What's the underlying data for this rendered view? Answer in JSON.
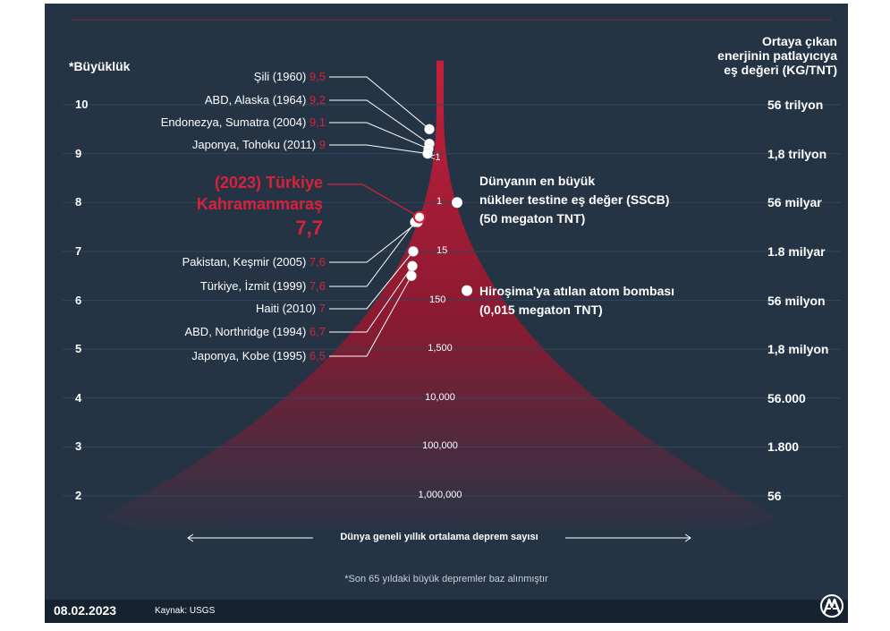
{
  "header": {
    "left_title": "*Büyüklük",
    "right_title_lines": [
      "Ortaya çıkan",
      "enerjinin patlayıcıya",
      "eş değeri (KG/TNT)"
    ]
  },
  "chart_data": {
    "type": "scatter",
    "title": "",
    "y_axis": {
      "label": "*Büyüklük",
      "ticks": [
        10,
        9,
        8,
        7,
        6,
        5,
        4,
        3,
        2
      ],
      "range": [
        2,
        10
      ]
    },
    "energy_scale": {
      "label": "Ortaya çıkan enerjinin patlayıcıya eş değeri (KG/TNT)",
      "values": [
        "56 trilyon",
        "1,8 trilyon",
        "56 milyar",
        "1.8 milyar",
        "56 milyon",
        "1,8 milyon",
        "56.000",
        "1.800",
        "56"
      ],
      "magnitudes": [
        10,
        9,
        8,
        7,
        6,
        5,
        4,
        3,
        2
      ]
    },
    "annual_frequency": {
      "label": "Dünya geneli yıllık ortalama deprem sayısı",
      "points": [
        {
          "text": "<1",
          "magnitude": 8.9
        },
        {
          "text": "1",
          "magnitude": 8.0
        },
        {
          "text": "15",
          "magnitude": 7.0
        },
        {
          "text": "150",
          "magnitude": 6.0
        },
        {
          "text": "1,500",
          "magnitude": 5.0
        },
        {
          "text": "10,000",
          "magnitude": 4.0
        },
        {
          "text": "100,000",
          "magnitude": 3.0
        },
        {
          "text": "1,000,000",
          "magnitude": 2.0
        }
      ]
    },
    "earthquakes": [
      {
        "name": "Şili (1960)",
        "value_label": "9,5",
        "magnitude": 9.5
      },
      {
        "name": "ABD, Alaska (1964)",
        "value_label": "9,2",
        "magnitude": 9.2
      },
      {
        "name": "Endonezya, Sumatra (2004)",
        "value_label": "9,1",
        "magnitude": 9.1
      },
      {
        "name": "Japonya, Tohoku (2011)",
        "value_label": "9",
        "magnitude": 9.0
      },
      {
        "name": "Pakistan, Keşmir (2005)",
        "value_label": "7,6",
        "magnitude": 7.6
      },
      {
        "name": "Türkiye, İzmit (1999)",
        "value_label": "7,6",
        "magnitude": 7.6
      },
      {
        "name": "Haiti (2010)",
        "value_label": "7",
        "magnitude": 7.0
      },
      {
        "name": "ABD, Northridge (1994)",
        "value_label": "6,7",
        "magnitude": 6.7
      },
      {
        "name": "Japonya, Kobe (1995)",
        "value_label": "6,5",
        "magnitude": 6.5
      }
    ],
    "highlight": {
      "lines": [
        "(2023) Türkiye",
        "Kahramanmaraş"
      ],
      "value_label": "7,7",
      "magnitude": 7.7,
      "color": "#d8213a"
    },
    "annotations": [
      {
        "lines": [
          "Dünyanın en büyük",
          "nükleer testine eş değer (SSCB)",
          "(50 megaton TNT)"
        ],
        "magnitude": 8.0
      },
      {
        "lines": [
          "Hiroşima'ya atılan atom bombası",
          "(0,015 megaton TNT)"
        ],
        "magnitude": 6.2
      }
    ],
    "axis_note": "Dünya geneli yıllık ortalama deprem sayısı",
    "colors": {
      "background": "#243445",
      "funnel": "#a81c35",
      "accent": "#d8213a",
      "text": "#ffffff"
    }
  },
  "footnote": "*Son 65 yıldaki büyük depremler baz alınmıştır",
  "footer": {
    "date": "08.02.2023",
    "source": "Kaynak: USGS"
  },
  "logo": {
    "name": "aa-logo"
  }
}
